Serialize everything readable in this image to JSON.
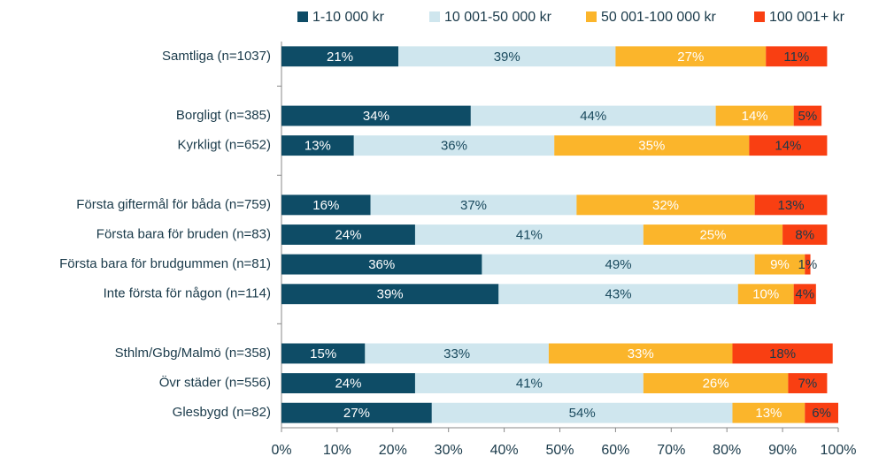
{
  "chart_data": {
    "type": "stacked-bar-horizontal",
    "categories": [
      "Samtliga (n=1037)",
      null,
      "Borgligt (n=385)",
      "Kyrkligt  (n=652)",
      null,
      "Första giftermål för båda (n=759)",
      "Första bara för bruden (n=83)",
      "Första bara för brudgummen (n=81)",
      "Inte första för någon (n=114)",
      null,
      "Sthlm/Gbg/Malmö (n=358)",
      "Övr städer (n=556)",
      "Glesbygd (n=82)"
    ],
    "series": [
      {
        "name": "1-10 000 kr",
        "color": "#0e4c66",
        "values": [
          21,
          null,
          34,
          13,
          null,
          16,
          24,
          36,
          39,
          null,
          15,
          24,
          27
        ],
        "value_labels": [
          "21%",
          null,
          "34%",
          "13%",
          null,
          "16%",
          "24%",
          "36%",
          "39%",
          null,
          "15%",
          "24%",
          "27%"
        ]
      },
      {
        "name": "10 001-50 000 kr",
        "color": "#cfe6ee",
        "values": [
          39,
          null,
          44,
          36,
          null,
          37,
          41,
          49,
          43,
          null,
          33,
          41,
          54
        ],
        "value_labels": [
          "39%",
          null,
          "44%",
          "36%",
          null,
          "37%",
          "41%",
          "49%",
          "43%",
          null,
          "33%",
          "41%",
          "54%"
        ]
      },
      {
        "name": "50 001-100 000 kr",
        "color": "#fbb52b",
        "values": [
          27,
          null,
          14,
          35,
          null,
          32,
          25,
          9,
          10,
          null,
          33,
          26,
          13
        ],
        "value_labels": [
          "27%",
          null,
          "14%",
          "35%",
          null,
          "32%",
          "25%",
          "9%",
          "10%",
          null,
          "33%",
          "26%",
          "13%"
        ]
      },
      {
        "name": "100 001+ kr",
        "color": "#f93f12",
        "values": [
          11,
          null,
          5,
          14,
          null,
          13,
          8,
          1,
          4,
          null,
          18,
          7,
          6
        ],
        "value_labels": [
          "11%",
          null,
          "5%",
          "14%",
          null,
          "13%",
          "8%",
          "1%",
          "4%",
          null,
          "18%",
          "7%",
          "6%"
        ]
      }
    ],
    "xlim": [
      0,
      100
    ],
    "xticks": [
      {
        "value": 0,
        "label": "0%"
      },
      {
        "value": 10,
        "label": "10%"
      },
      {
        "value": 20,
        "label": "20%"
      },
      {
        "value": 30,
        "label": "30%"
      },
      {
        "value": 40,
        "label": "40%"
      },
      {
        "value": 50,
        "label": "50%"
      },
      {
        "value": 60,
        "label": "60%"
      },
      {
        "value": 70,
        "label": "70%"
      },
      {
        "value": 80,
        "label": "80%"
      },
      {
        "value": 90,
        "label": "90%"
      },
      {
        "value": 100,
        "label": "100%"
      }
    ],
    "legend": "top"
  }
}
